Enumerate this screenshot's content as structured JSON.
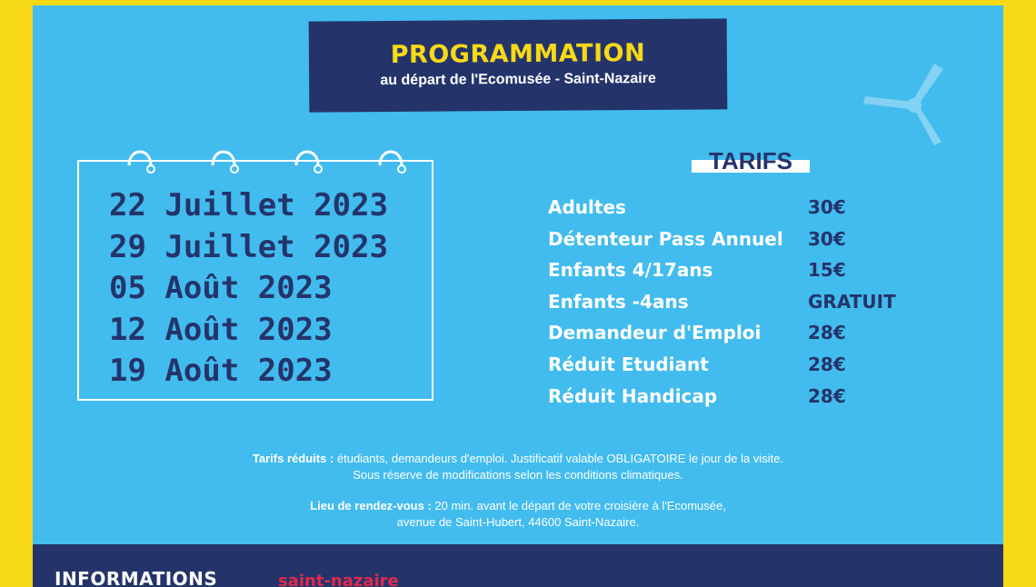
{
  "header": {
    "title": "PROGRAMMATION",
    "subtitle": "au départ de l'Ecomusée - Saint-Nazaire"
  },
  "dates": [
    "22 Juillet 2023",
    "29 Juillet 2023",
    "05 Août 2023",
    "12 Août 2023",
    "19 Août 2023"
  ],
  "tarifs": {
    "title": "TARIFS",
    "rows": [
      {
        "label": "Adultes",
        "price": "30€"
      },
      {
        "label": "Détenteur Pass Annuel",
        "price": "30€"
      },
      {
        "label": "Enfants 4/17ans",
        "price": "15€"
      },
      {
        "label": "Enfants -4ans",
        "price": "GRATUIT"
      },
      {
        "label": "Demandeur d'Emploi",
        "price": "28€"
      },
      {
        "label": "Réduit Etudiant",
        "price": "28€"
      },
      {
        "label": "Réduit Handicap",
        "price": "28€"
      }
    ]
  },
  "notes": {
    "reduced_label": "Tarifs réduits :",
    "reduced_text": " étudiants, demandeurs d'emploi. Justificatif valable OBLIGATOIRE le jour de la visite.",
    "weather": "Sous réserve de modifications selon les conditions climatiques.",
    "meeting_label": "Lieu de rendez-vous :",
    "meeting_text": " 20 min. avant le départ de votre croisière à l'Ecomusée,",
    "address": "avenue de Saint-Hubert, 44600 Saint-Nazaire."
  },
  "footer": {
    "info_label": "INFORMATIONS",
    "red_text": "saint-nazaire"
  },
  "colors": {
    "yellow": "#f7d916",
    "sky": "#42bcee",
    "navy": "#24346b",
    "white": "#ffffff",
    "red": "#e1294a"
  }
}
